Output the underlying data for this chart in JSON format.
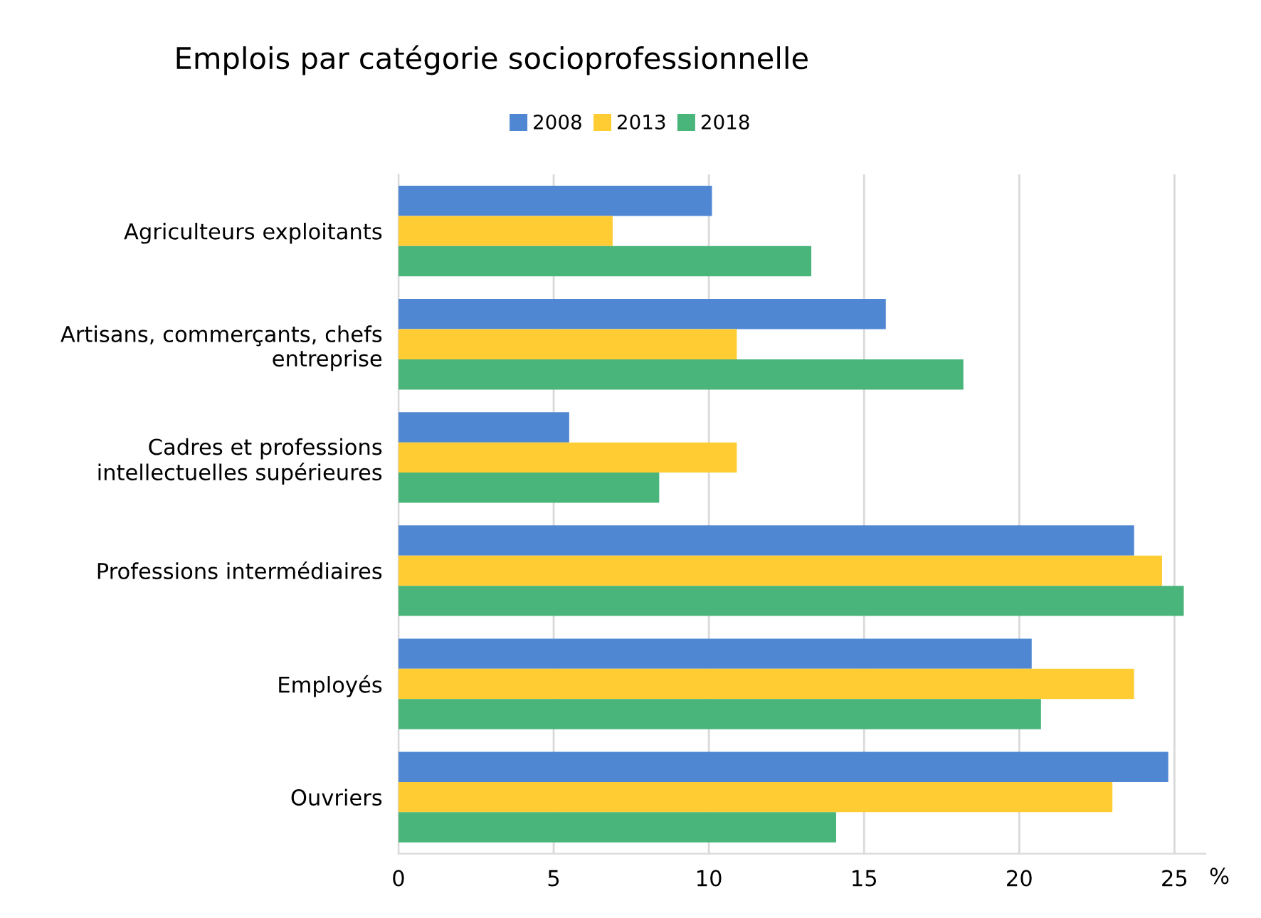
{
  "chart_data": {
    "type": "bar",
    "orientation": "horizontal",
    "title": "Emplois par catégorie socioprofessionnelle",
    "xlabel": "%",
    "categories": [
      "Agriculteurs exploitants",
      "Artisans, commerçants, chefs\nentreprise",
      "Cadres et professions\nintellectuelles supérieures",
      "Professions intermédiaires",
      "Employés",
      "Ouvriers"
    ],
    "series": [
      {
        "name": "2008",
        "color": "#5087d3",
        "values": [
          10.1,
          15.7,
          5.5,
          23.7,
          20.4,
          24.8
        ]
      },
      {
        "name": "2013",
        "color": "#ffcd33",
        "values": [
          6.9,
          10.9,
          10.9,
          24.6,
          23.7,
          23.0
        ]
      },
      {
        "name": "2018",
        "color": "#4ab57a",
        "values": [
          13.3,
          18.2,
          8.4,
          25.3,
          20.7,
          14.1
        ]
      }
    ],
    "xlim": [
      0,
      26
    ],
    "xticks": [
      0,
      5,
      10,
      15,
      20,
      25
    ],
    "grid": "x",
    "legend": "top"
  }
}
